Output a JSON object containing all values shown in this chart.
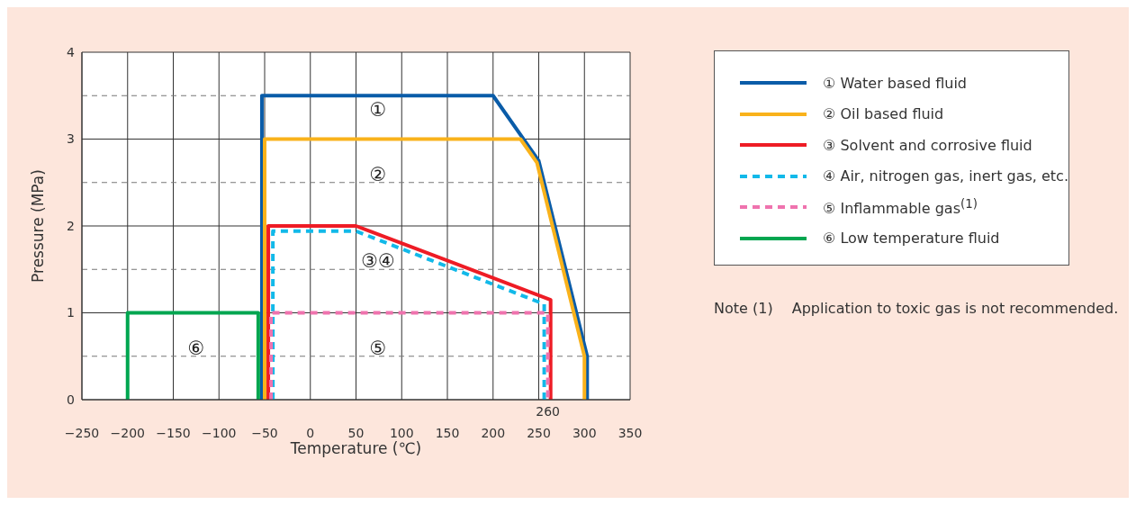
{
  "chart_data": {
    "type": "line",
    "xlabel": "Temperature (℃)",
    "ylabel": "Pressure (MPa)",
    "xlim": [
      -250,
      350
    ],
    "ylim": [
      0,
      4
    ],
    "xticks": [
      {
        "value": -250,
        "label": "−250"
      },
      {
        "value": -200,
        "label": "−200"
      },
      {
        "value": -150,
        "label": "−150"
      },
      {
        "value": -100,
        "label": "−100"
      },
      {
        "value": -50,
        "label": "−50"
      },
      0,
      50,
      100,
      150,
      200,
      250,
      300,
      350
    ],
    "yticks": [
      0,
      {
        "value": 0.5,
        "label": null
      },
      1,
      {
        "value": 1.5,
        "label": null
      },
      2,
      {
        "value": 2.5,
        "label": null
      },
      3,
      {
        "value": 3.5,
        "label": null
      },
      4
    ],
    "grid": true,
    "legend": "right",
    "marker": "none",
    "series": [
      {
        "name": "① Water based fluid",
        "color": "#0a5ca8",
        "line_style": "solid",
        "x": [
          -53,
          -53,
          200,
          250,
          303,
          303
        ],
        "values": [
          0,
          3.5,
          3.5,
          2.75,
          0.5,
          0
        ]
      },
      {
        "name": "② Oil based fluid",
        "color": "#f9b21b",
        "line_style": "solid",
        "x": [
          -50,
          -50,
          230,
          248,
          300,
          300
        ],
        "values": [
          0,
          3,
          3,
          2.73,
          0.5,
          0
        ]
      },
      {
        "name": "③ Solvent and corrosive fluid",
        "color": "#ee1c25",
        "line_style": "solid",
        "x": [
          -46,
          -46,
          50,
          263,
          263
        ],
        "values": [
          0,
          2,
          2,
          1.15,
          0
        ]
      },
      {
        "name": "④ Air, nitrogen gas, inert gas, etc.",
        "color": "#12b9e9",
        "line_style": "dashed",
        "x": [
          -41,
          -41,
          50,
          256,
          256
        ],
        "values": [
          0,
          1.94,
          1.94,
          1.1,
          0
        ]
      },
      {
        "name": "⑤ Inflammable gas$^{(1)}$",
        "color": "#ef73ae",
        "line_style": "dashed",
        "x": [
          -43,
          -43,
          260,
          260
        ],
        "values": [
          0,
          1,
          1,
          0
        ]
      },
      {
        "name": "⑥ Low temperature fluid",
        "color": "#00a650",
        "line_style": "solid",
        "x": [
          -200,
          -200,
          -57,
          -57
        ],
        "values": [
          0,
          1,
          1,
          0
        ]
      }
    ],
    "annotations": [
      "①",
      "②",
      "③④",
      "⑤",
      "⑥",
      {
        "text": "260",
        "x": 260,
        "y": 0
      },
      "Note (1)  Application to toxic gas is not recommended."
    ]
  }
}
